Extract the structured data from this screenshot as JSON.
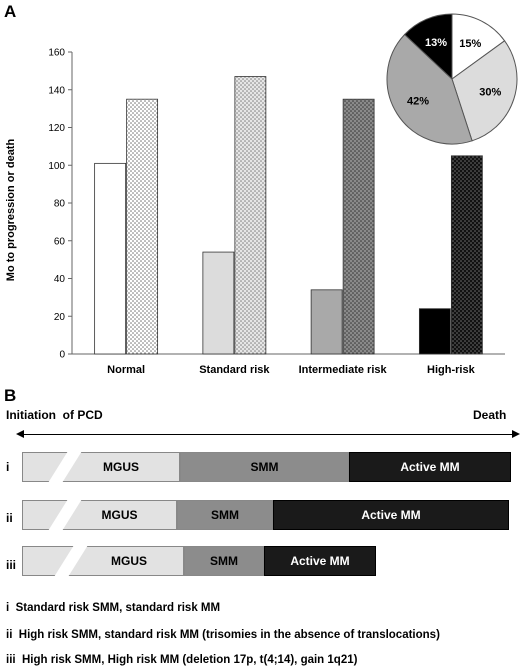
{
  "panel_a": {
    "letter": "A"
  },
  "panel_b": {
    "letter": "B"
  },
  "chart_data": [
    {
      "type": "bar",
      "ylabel": "Mo to progression or death",
      "ylim": [
        0,
        160
      ],
      "yticks": [
        0,
        20,
        40,
        60,
        80,
        100,
        120,
        140,
        160
      ],
      "categories": [
        "Normal",
        "Standard risk",
        "Intermediate risk",
        "High-risk"
      ],
      "series": [
        {
          "values": [
            101,
            54,
            34,
            24
          ],
          "fills": [
            "#ffffff",
            "#dcdcdc",
            "#a9a9a9",
            "#000000"
          ],
          "pattern": "solid"
        },
        {
          "values": [
            135,
            147,
            135,
            105
          ],
          "fills": [
            "#ffffff",
            "#dcdcdc",
            "#a9a9a9",
            "#000000"
          ],
          "pattern": "dotted"
        }
      ],
      "grid": false,
      "legend": "none"
    },
    {
      "type": "pie",
      "slices": [
        {
          "label": "15%",
          "value": 15,
          "color": "#ffffff"
        },
        {
          "label": "30%",
          "value": 30,
          "color": "#dcdcdc"
        },
        {
          "label": "42%",
          "value": 42,
          "color": "#a9a9a9"
        },
        {
          "label": "13%",
          "value": 13,
          "color": "#000000"
        }
      ]
    }
  ],
  "timeline": {
    "start_label": "Initiation  of PCD",
    "end_label": "Death",
    "rows": [
      {
        "label": "i",
        "mgus": "MGUS",
        "smm": "SMM",
        "active": "Active MM"
      },
      {
        "label": "ii",
        "mgus": "MGUS",
        "smm": "SMM",
        "active": "Active MM"
      },
      {
        "label": "iii",
        "mgus": "MGUS",
        "smm": "SMM",
        "active": "Active MM"
      }
    ]
  },
  "legend_lines": [
    "i  Standard risk SMM, standard risk MM",
    "ii  High risk SMM, standard risk MM (trisomies in the absence of translocations)",
    "iii  High risk SMM, High risk MM (deletion 17p, t(4;14), gain 1q21)"
  ]
}
